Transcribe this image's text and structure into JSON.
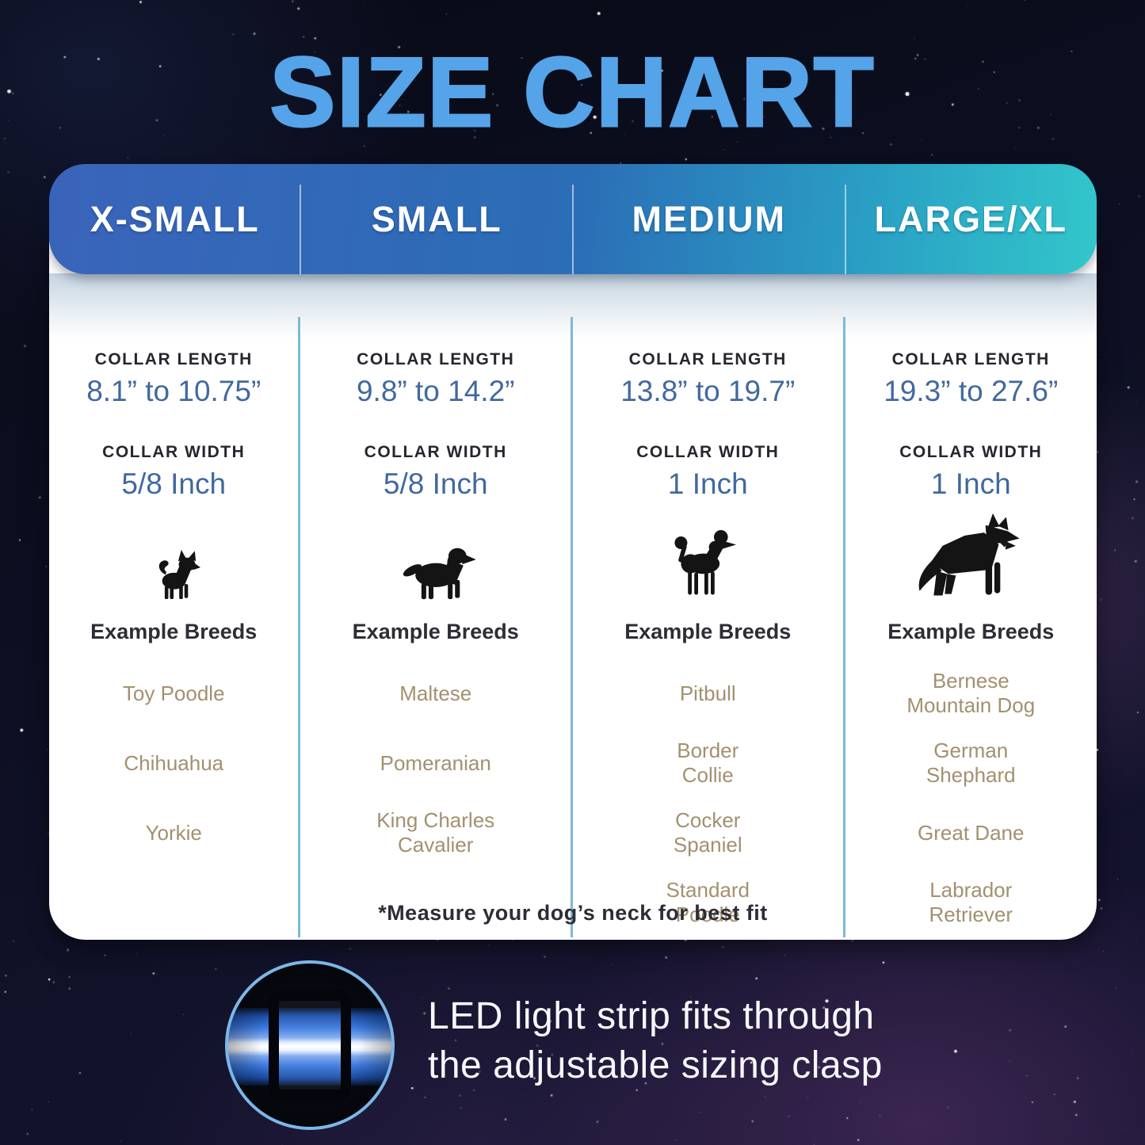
{
  "title": "SIZE CHART",
  "table": {
    "labels": {
      "collar_length": "COLLAR LENGTH",
      "collar_width": "COLLAR WIDTH",
      "example_breeds": "Example Breeds"
    },
    "columns": [
      {
        "size": "X-SMALL",
        "collar_length": "8.1” to 10.75”",
        "collar_width": "5/8 Inch",
        "dog_icon": "chihuahua-icon",
        "breeds": [
          "Toy Poodle",
          "Chihuahua",
          "Yorkie"
        ]
      },
      {
        "size": "SMALL",
        "collar_length": "9.8” to 14.2”",
        "collar_width": "5/8 Inch",
        "dog_icon": "cavalier-spaniel-icon",
        "breeds": [
          "Maltese",
          "Pomeranian",
          "King Charles\nCavalier"
        ]
      },
      {
        "size": "MEDIUM",
        "collar_length": "13.8” to 19.7”",
        "collar_width": "1 Inch",
        "dog_icon": "poodle-icon",
        "breeds": [
          "Pitbull",
          "Border\nCollie",
          "Cocker\nSpaniel",
          "Standard\nPoodle"
        ]
      },
      {
        "size": "LARGE/XL",
        "collar_length": "19.3” to 27.6”",
        "collar_width": "1 Inch",
        "dog_icon": "german-shepherd-icon",
        "breeds": [
          "Bernese\nMountain Dog",
          "German\nShephard",
          "Great Dane",
          "Labrador\nRetriever"
        ]
      }
    ],
    "footnote": "*Measure your dog’s neck for best fit"
  },
  "callout": {
    "line1": "LED light strip fits through",
    "line2": "the adjustable sizing clasp",
    "image": "collar-clasp-photo"
  },
  "colors": {
    "title_blue": "#55a3e8",
    "header_gradient_start": "#3a64ba",
    "header_gradient_end": "#32c7cb",
    "value_blue": "#41699e",
    "breed_tan": "#a3906f",
    "divider_blue": "#7cb9d9",
    "ring_blue": "#7bb7e8"
  },
  "chart_data": {
    "type": "table",
    "title": "SIZE CHART",
    "columns": [
      "X-SMALL",
      "SMALL",
      "MEDIUM",
      "LARGE/XL"
    ],
    "rows": [
      {
        "label": "COLLAR LENGTH",
        "values": [
          "8.1” to 10.75”",
          "9.8” to 14.2”",
          "13.8” to 19.7”",
          "19.3” to 27.6”"
        ]
      },
      {
        "label": "COLLAR WIDTH",
        "values": [
          "5/8 Inch",
          "5/8 Inch",
          "1 Inch",
          "1 Inch"
        ]
      },
      {
        "label": "Example Breeds",
        "values": [
          "Toy Poodle; Chihuahua; Yorkie",
          "Maltese; Pomeranian; King Charles Cavalier",
          "Pitbull; Border Collie; Cocker Spaniel; Standard Poodle",
          "Bernese Mountain Dog; German Shephard; Great Dane; Labrador Retriever"
        ]
      }
    ],
    "footnote": "*Measure your dog’s neck for best fit"
  }
}
